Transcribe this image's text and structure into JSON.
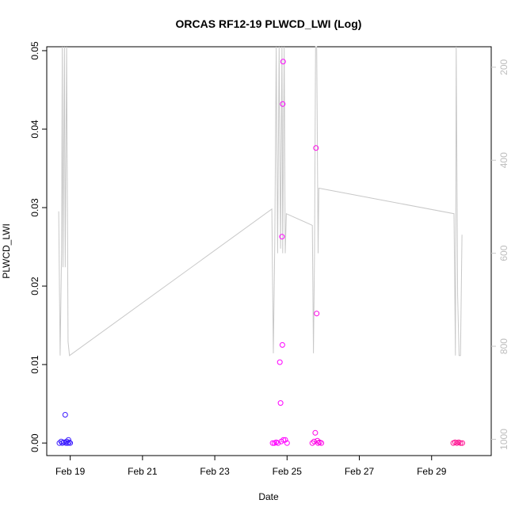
{
  "chart_data": {
    "type": "scatter",
    "title": "ORCAS RF12-19 PLWCD_LWI (Log)",
    "xlabel": "Date",
    "ylabel": "PLWCD_LWI",
    "x_ticks": [
      "Feb 19",
      "Feb 21",
      "Feb 23",
      "Feb 25",
      "Feb 27",
      "Feb 29"
    ],
    "x_tick_days": [
      19,
      21,
      23,
      25,
      27,
      29
    ],
    "xlim": [
      18.35,
      30.65
    ],
    "ylim": [
      -0.0016,
      0.0505
    ],
    "y_ticks": [
      0.0,
      0.01,
      0.02,
      0.03,
      0.04,
      0.05
    ],
    "y_tick_labels": [
      "0.00",
      "0.01",
      "0.02",
      "0.03",
      "0.04",
      "0.05"
    ],
    "y2_ticks": [
      200,
      400,
      600,
      800,
      1000
    ],
    "y2_tick_labels": [
      "200",
      "400",
      "600",
      "800",
      "1000"
    ],
    "y2lim": [
      1035,
      156
    ],
    "y2_color": "#c8c8c8",
    "series": [
      {
        "color": "#3b1bff",
        "points": [
          [
            18.7,
            0.0
          ],
          [
            18.75,
            0.0002
          ],
          [
            18.78,
            0.0
          ],
          [
            18.82,
            0.0001
          ],
          [
            18.86,
            0.0036
          ],
          [
            18.88,
            0.0
          ],
          [
            18.9,
            0.0002
          ],
          [
            18.93,
            0.0
          ],
          [
            18.95,
            0.0004
          ],
          [
            18.97,
            0.0001
          ],
          [
            19.0,
            0.0
          ]
        ]
      },
      {
        "color": "#ff00ff",
        "points": [
          [
            24.6,
            0.0
          ],
          [
            24.65,
            0.0
          ],
          [
            24.7,
            0.0001
          ],
          [
            24.75,
            0.0
          ],
          [
            24.8,
            0.0103
          ],
          [
            24.82,
            0.0051
          ],
          [
            24.84,
            0.0002
          ],
          [
            24.86,
            0.0263
          ],
          [
            24.87,
            0.0125
          ],
          [
            24.88,
            0.0432
          ],
          [
            24.89,
            0.0486
          ],
          [
            24.9,
            0.0004
          ],
          [
            24.95,
            0.0004
          ],
          [
            25.0,
            0.0
          ]
        ]
      },
      {
        "color": "#ff00e6",
        "points": [
          [
            25.7,
            0.0
          ],
          [
            25.75,
            0.0002
          ],
          [
            25.78,
            0.0013
          ],
          [
            25.8,
            0.0376
          ],
          [
            25.82,
            0.0165
          ],
          [
            25.84,
            0.0003
          ],
          [
            25.86,
            0.0
          ],
          [
            25.9,
            0.0001
          ],
          [
            25.95,
            0.0
          ]
        ]
      },
      {
        "color": "#ff1493",
        "points": [
          [
            29.6,
            0.0
          ],
          [
            29.65,
            0.0001
          ],
          [
            29.7,
            0.0
          ],
          [
            29.75,
            0.0001
          ],
          [
            29.8,
            0.0
          ],
          [
            29.85,
            0.0
          ]
        ]
      }
    ],
    "line_series": {
      "color": "#c8c8c8",
      "points": [
        [
          18.68,
          510
        ],
        [
          18.72,
          820
        ],
        [
          18.76,
          600
        ],
        [
          18.78,
          156
        ],
        [
          18.8,
          630
        ],
        [
          18.84,
          156
        ],
        [
          18.86,
          630
        ],
        [
          18.9,
          156
        ],
        [
          18.94,
          790
        ],
        [
          18.98,
          820
        ],
        [
          24.58,
          505
        ],
        [
          24.62,
          815
        ],
        [
          24.66,
          580
        ],
        [
          24.7,
          156
        ],
        [
          24.74,
          600
        ],
        [
          24.78,
          156
        ],
        [
          24.82,
          590
        ],
        [
          24.86,
          156
        ],
        [
          24.88,
          600
        ],
        [
          24.92,
          156
        ],
        [
          24.95,
          600
        ],
        [
          24.98,
          515
        ],
        [
          25.7,
          540
        ],
        [
          25.73,
          815
        ],
        [
          25.76,
          590
        ],
        [
          25.79,
          156
        ],
        [
          25.82,
          156
        ],
        [
          25.86,
          600
        ],
        [
          25.88,
          460
        ],
        [
          29.62,
          515
        ],
        [
          29.66,
          820
        ],
        [
          29.68,
          156
        ],
        [
          29.72,
          690
        ],
        [
          29.76,
          820
        ],
        [
          29.8,
          820
        ],
        [
          29.84,
          560
        ]
      ]
    }
  }
}
